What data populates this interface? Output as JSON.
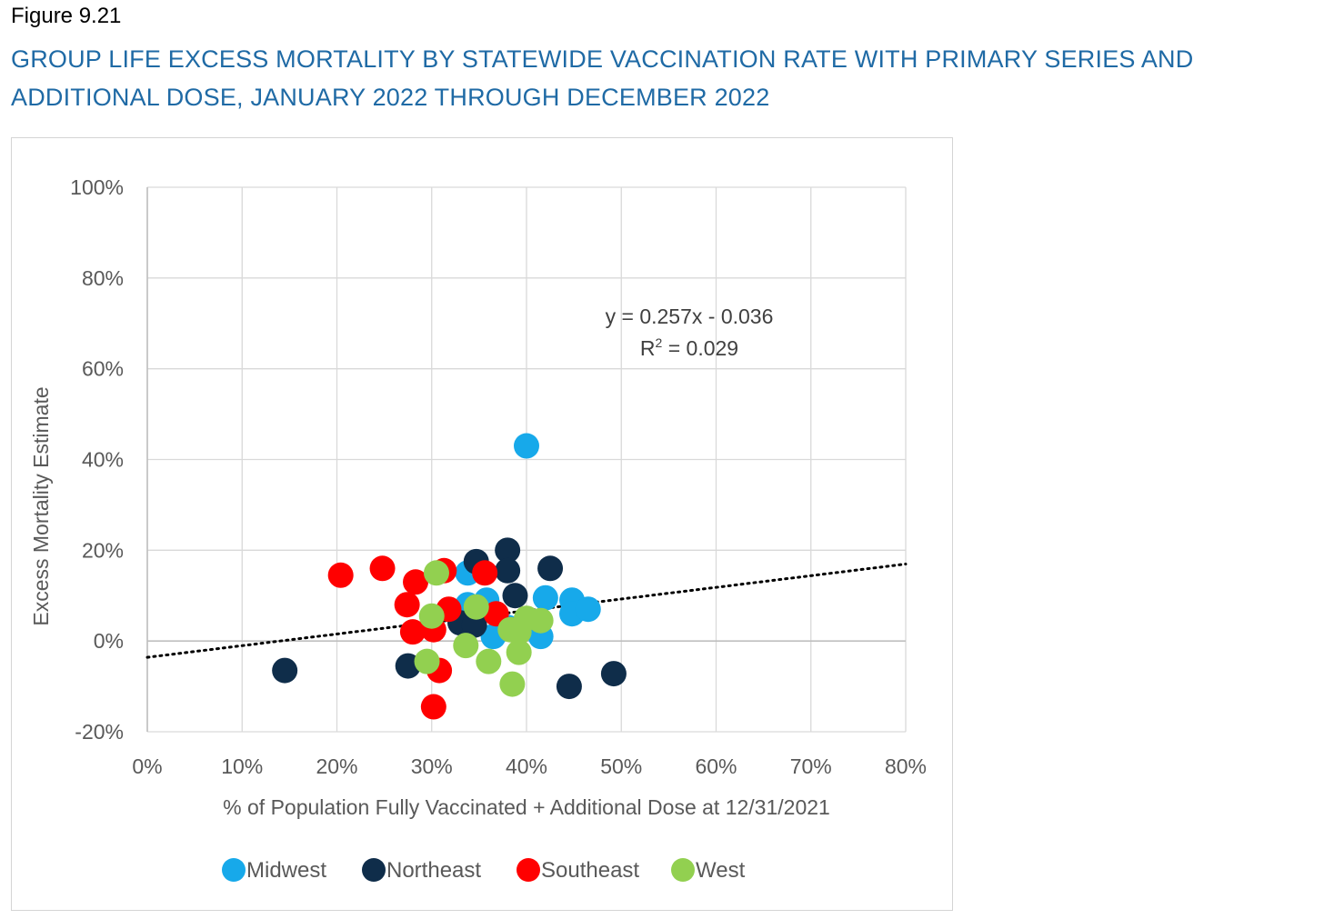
{
  "figure_label": "Figure 9.21",
  "figure_title": "GROUP LIFE EXCESS MORTALITY BY STATEWIDE VACCINATION RATE WITH PRIMARY SERIES AND ADDITIONAL DOSE, JANUARY 2022 THROUGH DECEMBER 2022",
  "chart_data": {
    "type": "scatter",
    "title": "",
    "xlabel": "% of Population Fully Vaccinated + Additional Dose at 12/31/2021",
    "ylabel": "Excess Mortality Estimate",
    "xlim": [
      0,
      0.8
    ],
    "ylim": [
      -0.2,
      1.0
    ],
    "x_ticks": [
      0,
      0.1,
      0.2,
      0.3,
      0.4,
      0.5,
      0.6,
      0.7,
      0.8
    ],
    "x_tick_labels": [
      "0%",
      "10%",
      "20%",
      "30%",
      "40%",
      "50%",
      "60%",
      "70%",
      "80%"
    ],
    "y_ticks": [
      -0.2,
      0,
      0.2,
      0.4,
      0.6,
      0.8,
      1.0
    ],
    "y_tick_labels": [
      "-20%",
      "0%",
      "20%",
      "40%",
      "60%",
      "80%",
      "100%"
    ],
    "grid": true,
    "legend_position": "bottom",
    "trendline": {
      "style": "dotted",
      "color": "#000000",
      "slope": 0.257,
      "intercept": -0.036,
      "equation": "y = 0.257x - 0.036",
      "r2_prefix": "R",
      "r2_superscript": "2",
      "r2_suffix": " = 0.029"
    },
    "series": [
      {
        "name": "Midwest",
        "color": "#17a9ea",
        "points": [
          {
            "x": 0.4,
            "y": 0.43
          },
          {
            "x": 0.338,
            "y": 0.15
          },
          {
            "x": 0.338,
            "y": 0.08
          },
          {
            "x": 0.358,
            "y": 0.09
          },
          {
            "x": 0.42,
            "y": 0.095
          },
          {
            "x": 0.448,
            "y": 0.09
          },
          {
            "x": 0.448,
            "y": 0.06
          },
          {
            "x": 0.465,
            "y": 0.07
          },
          {
            "x": 0.365,
            "y": 0.01
          },
          {
            "x": 0.415,
            "y": 0.01
          },
          {
            "x": 0.38,
            "y": 0.03
          }
        ]
      },
      {
        "name": "Northeast",
        "color": "#0f2d4a",
        "points": [
          {
            "x": 0.145,
            "y": -0.065
          },
          {
            "x": 0.275,
            "y": -0.055
          },
          {
            "x": 0.347,
            "y": 0.175
          },
          {
            "x": 0.38,
            "y": 0.2
          },
          {
            "x": 0.38,
            "y": 0.155
          },
          {
            "x": 0.425,
            "y": 0.16
          },
          {
            "x": 0.388,
            "y": 0.1
          },
          {
            "x": 0.33,
            "y": 0.04
          },
          {
            "x": 0.345,
            "y": 0.035
          },
          {
            "x": 0.445,
            "y": -0.1
          },
          {
            "x": 0.492,
            "y": -0.072
          }
        ]
      },
      {
        "name": "Southeast",
        "color": "#ff0000",
        "points": [
          {
            "x": 0.204,
            "y": 0.145
          },
          {
            "x": 0.248,
            "y": 0.16
          },
          {
            "x": 0.283,
            "y": 0.13
          },
          {
            "x": 0.313,
            "y": 0.155
          },
          {
            "x": 0.356,
            "y": 0.15
          },
          {
            "x": 0.274,
            "y": 0.08
          },
          {
            "x": 0.28,
            "y": 0.02
          },
          {
            "x": 0.302,
            "y": 0.025
          },
          {
            "x": 0.318,
            "y": 0.07
          },
          {
            "x": 0.368,
            "y": 0.06
          },
          {
            "x": 0.308,
            "y": -0.065
          },
          {
            "x": 0.302,
            "y": -0.145
          }
        ]
      },
      {
        "name": "West",
        "color": "#92d050",
        "points": [
          {
            "x": 0.305,
            "y": 0.15
          },
          {
            "x": 0.3,
            "y": 0.055
          },
          {
            "x": 0.347,
            "y": 0.075
          },
          {
            "x": 0.336,
            "y": -0.01
          },
          {
            "x": 0.36,
            "y": -0.045
          },
          {
            "x": 0.295,
            "y": -0.045
          },
          {
            "x": 0.383,
            "y": 0.025
          },
          {
            "x": 0.392,
            "y": 0.02
          },
          {
            "x": 0.4,
            "y": 0.05
          },
          {
            "x": 0.415,
            "y": 0.045
          },
          {
            "x": 0.392,
            "y": -0.025
          },
          {
            "x": 0.385,
            "y": -0.095
          }
        ]
      }
    ]
  }
}
